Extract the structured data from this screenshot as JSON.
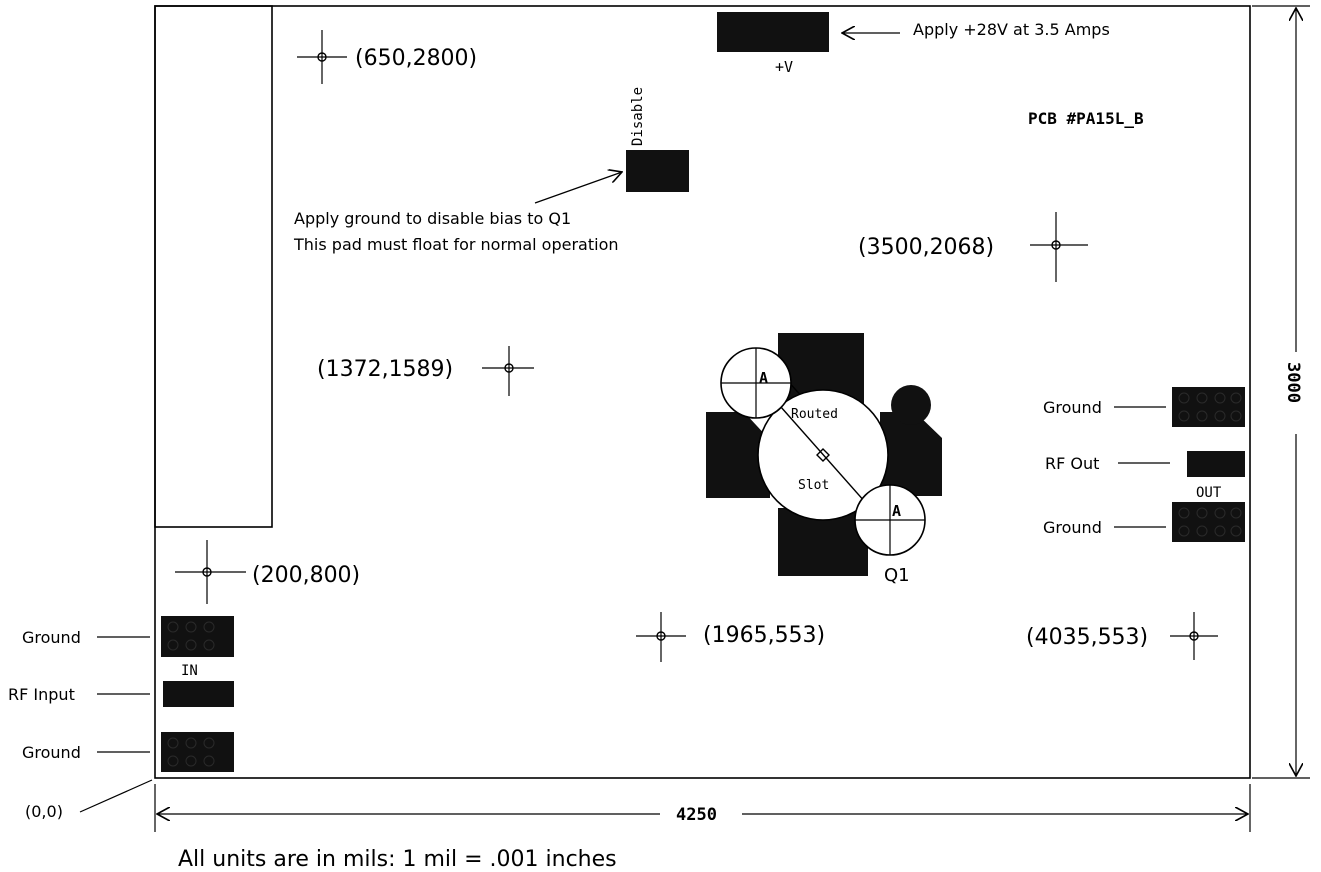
{
  "diagram": {
    "board_width_label": "4250",
    "board_height_label": "3000",
    "pcb_label": "PCB  #PA15L_B",
    "units_note": "All units are in mils: 1 mil = .001 inches",
    "origin_label": "(0,0)",
    "power": {
      "pad_label": "+V",
      "note": "Apply +28V at 3.5 Amps"
    },
    "disable": {
      "pad_label": "Disable",
      "note_line1": "Apply ground to disable bias to Q1",
      "note_line2": "This pad must float for normal operation"
    },
    "coordinates": [
      "(650,2800)",
      "(3500,2068)",
      "(1372,1589)",
      "(200,800)",
      "(1965,553)",
      "(4035,553)"
    ],
    "input_port": {
      "label": "IN",
      "ground_top": "Ground",
      "signal": "RF Input",
      "ground_bottom": "Ground"
    },
    "output_port": {
      "label": "OUT",
      "ground_top": "Ground",
      "signal": "RF Out",
      "ground_bottom": "Ground"
    },
    "transistor": {
      "designator": "Q1",
      "routed_label_1": "Routed",
      "routed_label_2": "Slot",
      "mount_label": "A"
    }
  }
}
